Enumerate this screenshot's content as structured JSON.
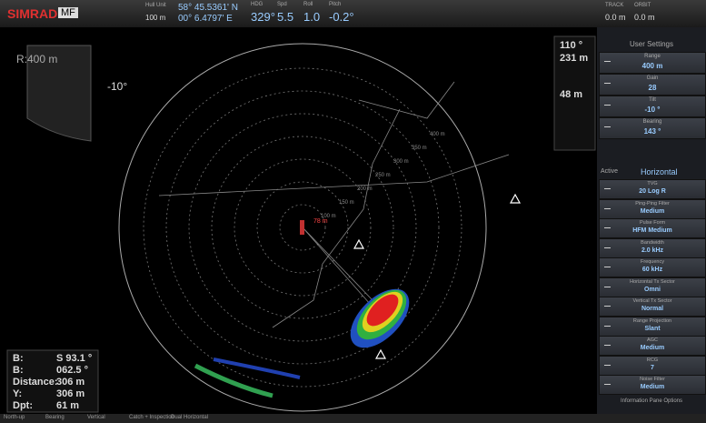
{
  "top_bar": {
    "brand": "SIMRAD",
    "model": "MF",
    "hull_unit_label": "Hull Unit",
    "hull_unit_value": "100 m",
    "lat": "58° 45.5361' N",
    "lon": "00° 6.4797' E",
    "hdg_label": "HDG",
    "hdg": "329°",
    "spd_label": "Spd",
    "spd": "5.5",
    "roll_label": "Roll",
    "roll": "1.0",
    "pitch_label": "Pitch",
    "pitch": "-0.2°",
    "track_label": "TRACK",
    "track": "0.0 m",
    "orbit_label": "ORBIT",
    "orbit": "0.0 m"
  },
  "sonar": {
    "range": "R:400 m",
    "tilt": "-10°",
    "bearing": "110 °",
    "distance": "231 m",
    "depth": "48 m",
    "ring_labels": [
      "400 m",
      "350 m",
      "300 m",
      "250 m",
      "200 m",
      "150 m",
      "100 m"
    ],
    "marker_label": "78 m"
  },
  "info": {
    "rows": [
      [
        "B:",
        "S 93.1 °"
      ],
      [
        "B:",
        "062.5 °"
      ],
      [
        "Distance:",
        "306 m"
      ],
      [
        "Y:",
        "306 m"
      ],
      [
        "Dpt:",
        "61 m"
      ]
    ]
  },
  "settings": {
    "title": "User Settings",
    "top_items": [
      {
        "label": "Range",
        "value": "400 m"
      },
      {
        "label": "Gain",
        "value": "28"
      },
      {
        "label": "Tilt",
        "value": "-10 °"
      },
      {
        "label": "Bearing",
        "value": "143 °"
      }
    ],
    "active_label": "Active",
    "active_value": "Horizontal",
    "items": [
      {
        "label": "TVG",
        "value": "20 Log R"
      },
      {
        "label": "Ping-Ping Filter",
        "value": "Medium"
      },
      {
        "label": "Pulse Form",
        "value": "HFM Medium"
      },
      {
        "label": "Bandwidth",
        "value": "2.0 kHz"
      },
      {
        "label": "Frequency",
        "value": "60 kHz"
      },
      {
        "label": "Horizontal Tx Sector",
        "value": "Omni"
      },
      {
        "label": "Vertical Tx Sector",
        "value": "Normal"
      },
      {
        "label": "Range Projection",
        "value": "Slant"
      },
      {
        "label": "AGC",
        "value": "Medium"
      },
      {
        "label": "RCG",
        "value": "7"
      },
      {
        "label": "Noise Filter",
        "value": "Medium"
      }
    ],
    "footer": "Information Pane Options"
  },
  "tabs": [
    "North-up",
    "Bearing",
    "Vertical",
    "Catch + Inspection",
    "Dual Horizontal"
  ]
}
